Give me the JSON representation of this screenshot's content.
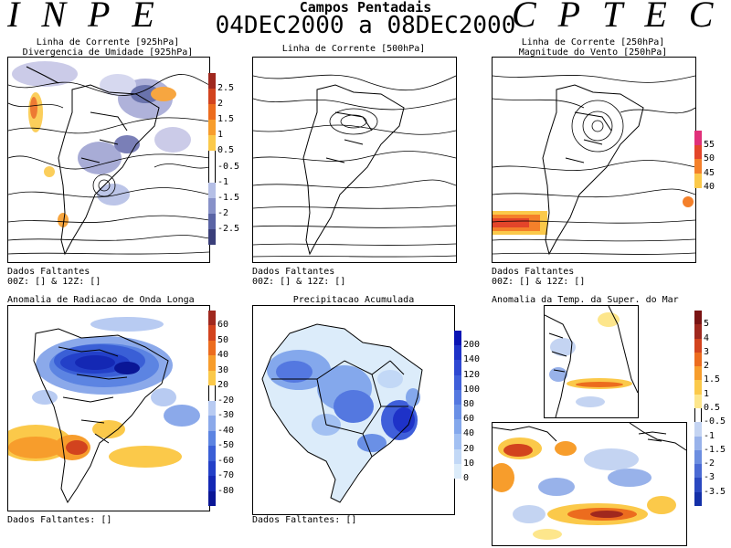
{
  "header": {
    "left_logo": "INPE",
    "right_logo": "CPTEC",
    "title_line1": "Campos Pentadais",
    "title_line2": "04DEC2000 a 08DEC2000"
  },
  "panels": {
    "p1": {
      "title1": "Linha de Corrente [925hPa]",
      "title2": "Divergencia de Umidade [925hPa]",
      "missing1": "Dados Faltantes",
      "missing2": "00Z: [] & 12Z: []",
      "colorbar_ticks": [
        "2.5",
        "2",
        "1.5",
        "1",
        "0.5",
        "-0.5",
        "-1",
        "-1.5",
        "-2",
        "-2.5"
      ],
      "colorbar_colors": [
        "#a0281e",
        "#d2431e",
        "#ec6c1e",
        "#f79d2c",
        "#fbc94a",
        "#ffffff",
        "#ffffff",
        "#b5bfe6",
        "#8791c8",
        "#5a64a5",
        "#3a3f7a"
      ]
    },
    "p2": {
      "title1": "Linha de Corrente [500hPa]",
      "missing1": "Dados Faltantes",
      "missing2": "00Z: [] & 12Z: []"
    },
    "p3": {
      "title1": "Linha de Corrente [250hPa]",
      "title2": "Magnitude do Vento [250hPa]",
      "missing1": "Dados Faltantes",
      "missing2": "00Z: [] & 12Z: []",
      "colorbar_ticks": [
        "55",
        "50",
        "45",
        "40"
      ],
      "colorbar_colors": [
        "#e0307a",
        "#e3452a",
        "#f4802a",
        "#fbc94a"
      ]
    },
    "p4": {
      "title1": "Anomalia de Radiacao de Onda Longa",
      "missing1": "Dados Faltantes: []",
      "colorbar_ticks": [
        "60",
        "50",
        "40",
        "30",
        "20",
        "-20",
        "-30",
        "-40",
        "-50",
        "-60",
        "-70",
        "-80"
      ],
      "colorbar_colors": [
        "#a0281e",
        "#d2431e",
        "#ec6c1e",
        "#f79d2c",
        "#fbc94a",
        "#ffffff",
        "#b8cbf2",
        "#8ba9ea",
        "#5c84e2",
        "#3a5fd6",
        "#2340c8",
        "#1428b4",
        "#0a1696"
      ]
    },
    "p5": {
      "title1": "Precipitacao Acumulada",
      "missing1": "Dados Faltantes: []",
      "colorbar_ticks": [
        "200",
        "140",
        "120",
        "100",
        "80",
        "60",
        "40",
        "20",
        "10",
        "0"
      ],
      "colorbar_colors": [
        "#0a14b4",
        "#1e32c8",
        "#2e48d2",
        "#3f5fda",
        "#5478e0",
        "#6a90e6",
        "#84a8ec",
        "#a2c0f2",
        "#c2d8f6",
        "#dcecfa"
      ]
    },
    "p6": {
      "title1": "Anomalia da Temp. da Super. do Mar",
      "colorbar_ticks": [
        "5",
        "4",
        "3",
        "2",
        "1.5",
        "1",
        "0.5",
        "-0.5",
        "-1",
        "-1.5",
        "-2",
        "-3",
        "-3.5"
      ],
      "colorbar_colors": [
        "#7a1414",
        "#a0281e",
        "#d2431e",
        "#ec6c1e",
        "#f79d2c",
        "#fbc94a",
        "#fde68c",
        "#ffffff",
        "#c4d4f2",
        "#98b2ea",
        "#6c8ee0",
        "#4a6ad4",
        "#2a48c0",
        "#1430a8"
      ]
    }
  }
}
